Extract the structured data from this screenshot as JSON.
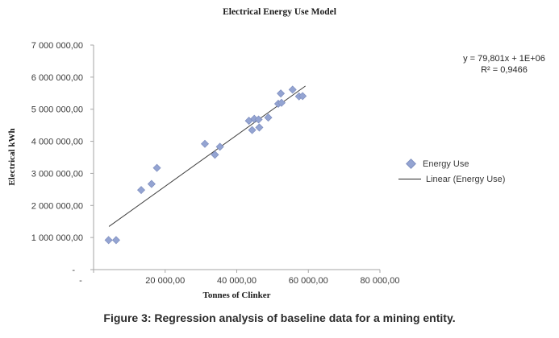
{
  "figure_caption": "Figure 3: Regression analysis of baseline data for a mining entity.",
  "chart_data": {
    "type": "scatter",
    "title": "Electrical Energy Use Model",
    "xlabel": "Tonnes of Clinker",
    "ylabel": "Electrical kWh",
    "xlim": [
      0,
      80000
    ],
    "ylim": [
      0,
      7000000
    ],
    "grid": false,
    "x_ticks": [
      {
        "value": 0,
        "label": "-",
        "dx": -16
      },
      {
        "value": 20000,
        "label": "20 000,00"
      },
      {
        "value": 40000,
        "label": "40 000,00"
      },
      {
        "value": 60000,
        "label": "60 000,00"
      },
      {
        "value": 80000,
        "label": "80 000,00"
      }
    ],
    "y_ticks": [
      {
        "value": 0,
        "label": "-",
        "dx": -10
      },
      {
        "value": 1000000,
        "label": "1 000 000,00"
      },
      {
        "value": 2000000,
        "label": "2 000 000,00"
      },
      {
        "value": 3000000,
        "label": "3 000 000,00"
      },
      {
        "value": 4000000,
        "label": "4 000 000,00"
      },
      {
        "value": 5000000,
        "label": "5 000 000,00"
      },
      {
        "value": 6000000,
        "label": "6 000 000,00"
      },
      {
        "value": 7000000,
        "label": "7 000 000,00"
      }
    ],
    "series": [
      {
        "name": "Energy Use",
        "marker": "diamond",
        "color": "#94a4d2",
        "edge_color": "#8090c0",
        "points": [
          [
            4200,
            920000
          ],
          [
            6300,
            920000
          ],
          [
            13300,
            2480000
          ],
          [
            16200,
            2670000
          ],
          [
            17700,
            3170000
          ],
          [
            31100,
            3920000
          ],
          [
            33900,
            3580000
          ],
          [
            35300,
            3830000
          ],
          [
            43400,
            4640000
          ],
          [
            44900,
            4700000
          ],
          [
            46100,
            4680000
          ],
          [
            48800,
            4740000
          ],
          [
            44300,
            4350000
          ],
          [
            46300,
            4430000
          ],
          [
            51600,
            5170000
          ],
          [
            52500,
            5200000
          ],
          [
            52300,
            5490000
          ],
          [
            55600,
            5610000
          ],
          [
            57400,
            5400000
          ],
          [
            58400,
            5410000
          ]
        ]
      }
    ],
    "trendline": {
      "name": "Linear (Energy Use)",
      "slope": 79.801,
      "intercept": 1000000,
      "r2": 0.9466,
      "x_range": [
        4300,
        59200
      ],
      "color": "#404040",
      "equation": "y = 79,801x + 1E+06",
      "r_squared": "R² = 0,9466"
    },
    "legend": {
      "position": "right",
      "entries": [
        {
          "label": "Energy Use",
          "type": "marker"
        },
        {
          "label": "Linear (Energy Use)",
          "type": "line"
        }
      ]
    },
    "style": {
      "axis_color": "#a6a6a6",
      "tick_label_color": "#3b3b3b"
    }
  }
}
